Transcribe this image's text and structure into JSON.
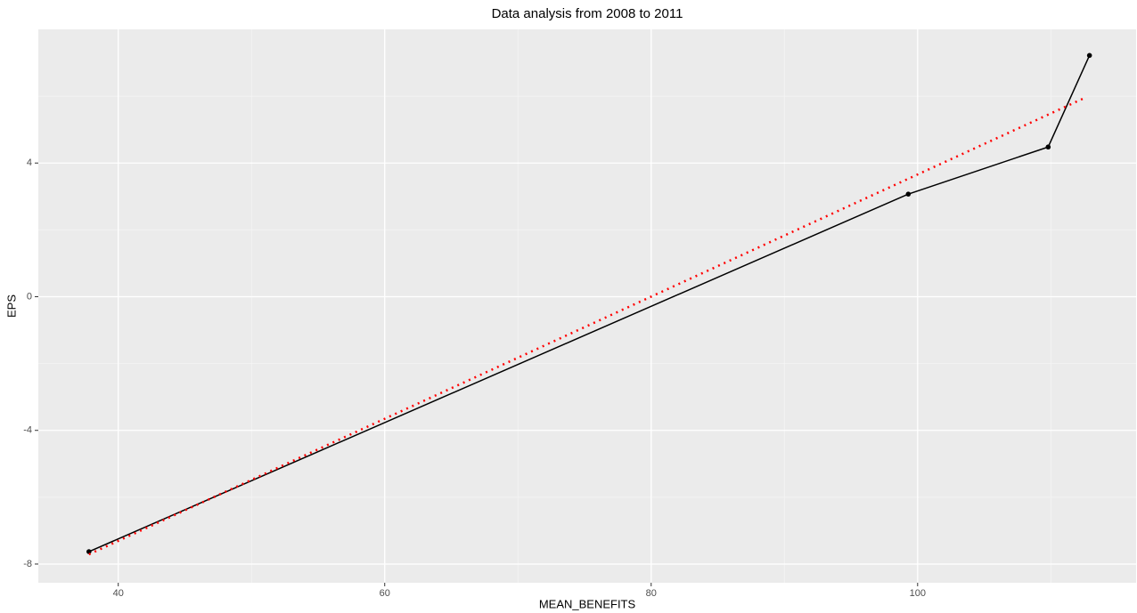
{
  "chart_data": {
    "type": "line",
    "title": "Data analysis from 2008 to 2011",
    "x_label": "MEAN_BENEFITS",
    "y_label": "EPS",
    "x": [
      37.8,
      99.3,
      109.8,
      112.9
    ],
    "series": [
      {
        "color": "#000000",
        "values": [
          -7.63,
          3.07,
          4.48,
          7.22
        ]
      }
    ],
    "trend": {
      "x": [
        37.8,
        112.6
      ],
      "values": [
        -7.71,
        5.96
      ],
      "color": "#ff0000"
    },
    "xlim": [
      34,
      116.4
    ],
    "ylim": [
      -8.56,
      8
    ],
    "xticks": [
      40,
      60,
      80,
      100
    ],
    "yticks": [
      -8,
      -4,
      0,
      4
    ],
    "xminor": [
      50,
      70,
      90,
      110
    ],
    "yminor": [
      -6,
      -2,
      2,
      6
    ],
    "grid": true
  }
}
